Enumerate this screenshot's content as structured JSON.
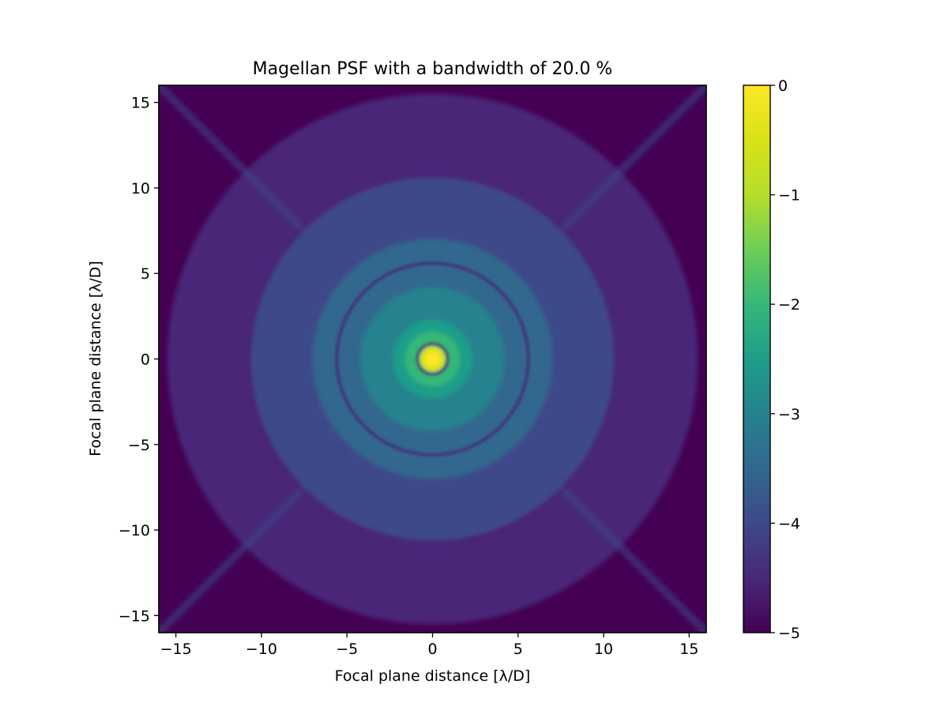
{
  "chart_data": {
    "type": "heatmap",
    "title": "Magellan PSF with a bandwidth of 20.0 %",
    "xlabel": "Focal plane distance [λ/D]",
    "ylabel": "Focal plane distance [λ/D]",
    "xlim": [
      -16,
      16
    ],
    "ylim": [
      -16,
      16
    ],
    "x_ticks": [
      -15,
      -10,
      -5,
      0,
      5,
      10,
      15
    ],
    "y_ticks": [
      -15,
      -10,
      -5,
      0,
      5,
      10,
      15
    ],
    "x_tick_labels": [
      "−15",
      "−10",
      "−5",
      "0",
      "5",
      "10",
      "15"
    ],
    "y_tick_labels": [
      "−15",
      "−10",
      "−5",
      "0",
      "5",
      "10",
      "15"
    ],
    "colorbar": {
      "range": [
        -5,
        0
      ],
      "ticks": [
        0,
        -1,
        -2,
        -3,
        -4,
        -5
      ],
      "tick_labels": [
        "0",
        "−1",
        "−2",
        "−3",
        "−4",
        "−5"
      ],
      "colormap": "viridis"
    },
    "features": {
      "peak_value": 0,
      "dark_rings_radius": [
        0.9,
        5.6,
        10.8
      ],
      "spider_diffraction_angles_deg": [
        45,
        135,
        225,
        315
      ]
    },
    "grid": false
  }
}
